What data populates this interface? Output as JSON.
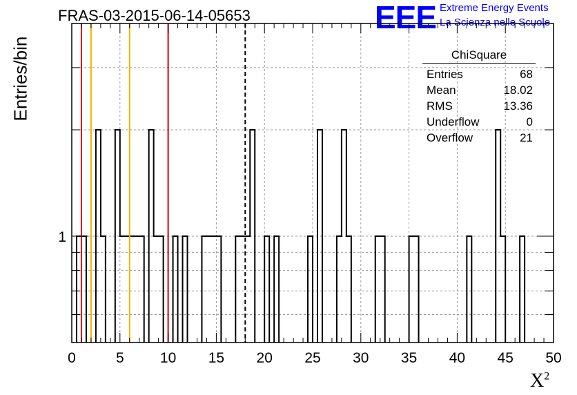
{
  "title": "FRAS-03-2015-06-14-05653",
  "logo": {
    "text": "EEE",
    "line1": "Extreme Energy Events",
    "line2": "La Scienza nelle Scuole"
  },
  "axis": {
    "ylabel": "Entries/bin",
    "xlabel_base": "X",
    "xlabel_sup": "2"
  },
  "stats": {
    "name": "ChiSquare",
    "rows": [
      {
        "label": "Entries",
        "value": "68"
      },
      {
        "label": "Mean",
        "value": "18.02"
      },
      {
        "label": "RMS",
        "value": "13.36"
      },
      {
        "label": "Underflow",
        "value": "0"
      },
      {
        "label": "Overflow",
        "value": "21"
      }
    ]
  },
  "chart_data": {
    "type": "histogram",
    "xlim": [
      0,
      50
    ],
    "ylog": true,
    "ylim": [
      0.5,
      4
    ],
    "xticks": [
      "0",
      "5",
      "10",
      "15",
      "20",
      "25",
      "30",
      "35",
      "40",
      "45",
      "50"
    ],
    "yticks": [
      {
        "value": 1,
        "label": "1"
      }
    ],
    "grid": true,
    "bins": [
      {
        "x0": 0.5,
        "x1": 1.0,
        "y": 1
      },
      {
        "x0": 1.0,
        "x1": 1.5,
        "y": 1
      },
      {
        "x0": 2.5,
        "x1": 3.0,
        "y": 2
      },
      {
        "x0": 3.0,
        "x1": 3.5,
        "y": 1
      },
      {
        "x0": 4.5,
        "x1": 5.0,
        "y": 2
      },
      {
        "x0": 5.0,
        "x1": 7.5,
        "y": 1
      },
      {
        "x0": 8.0,
        "x1": 8.5,
        "y": 2
      },
      {
        "x0": 8.5,
        "x1": 9.5,
        "y": 1
      },
      {
        "x0": 10.5,
        "x1": 11.0,
        "y": 1
      },
      {
        "x0": 11.5,
        "x1": 12.0,
        "y": 1
      },
      {
        "x0": 13.5,
        "x1": 15.5,
        "y": 1
      },
      {
        "x0": 17.0,
        "x1": 18.5,
        "y": 1
      },
      {
        "x0": 18.5,
        "x1": 19.0,
        "y": 2
      },
      {
        "x0": 20.0,
        "x1": 20.5,
        "y": 1
      },
      {
        "x0": 21.0,
        "x1": 21.5,
        "y": 1
      },
      {
        "x0": 24.5,
        "x1": 25.0,
        "y": 1
      },
      {
        "x0": 25.5,
        "x1": 26.0,
        "y": 2
      },
      {
        "x0": 27.5,
        "x1": 28.0,
        "y": 1
      },
      {
        "x0": 28.0,
        "x1": 28.5,
        "y": 2
      },
      {
        "x0": 28.5,
        "x1": 29.0,
        "y": 1
      },
      {
        "x0": 31.5,
        "x1": 32.5,
        "y": 1
      },
      {
        "x0": 35.0,
        "x1": 36.0,
        "y": 1
      },
      {
        "x0": 41.0,
        "x1": 41.5,
        "y": 1
      },
      {
        "x0": 44.0,
        "x1": 44.5,
        "y": 2
      },
      {
        "x0": 44.5,
        "x1": 45.0,
        "y": 1
      },
      {
        "x0": 46.5,
        "x1": 47.0,
        "y": 1
      }
    ],
    "vlines": [
      {
        "x": 1,
        "color": "#dd0000",
        "style": "solid"
      },
      {
        "x": 2,
        "color": "#f0b400",
        "style": "solid"
      },
      {
        "x": 6,
        "color": "#f0b400",
        "style": "solid"
      },
      {
        "x": 10,
        "color": "#dd0000",
        "style": "solid"
      },
      {
        "x": 18,
        "color": "#000000",
        "style": "dashed"
      }
    ]
  }
}
